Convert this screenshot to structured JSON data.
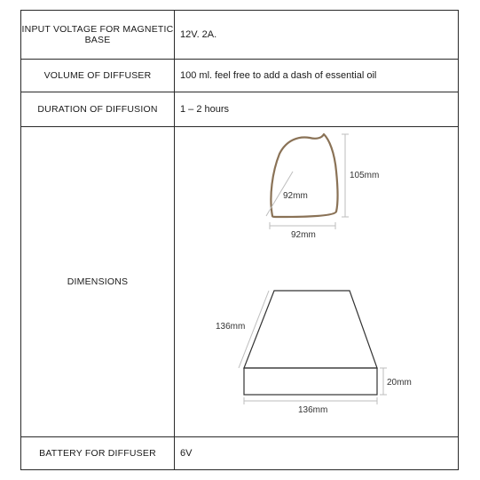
{
  "rows": [
    {
      "label": "INPUT VOLTAGE FOR MAGNETIC BASE",
      "value": "12V. 2A."
    },
    {
      "label": "VOLUME OF DIFFUSER",
      "value": "100 ml. feel free to add a dash of essential oil"
    },
    {
      "label": "DURATION OF DIFFUSION",
      "value": "1 – 2 hours"
    },
    {
      "label": "DIMENSIONS",
      "value": ""
    },
    {
      "label": "BATTERY FOR DIFFUSER",
      "value": "6V"
    }
  ],
  "dimensions": {
    "diffuser_depth": "92mm",
    "diffuser_width": "92mm",
    "diffuser_height": "105mm",
    "base_slant": "136mm",
    "base_width": "136mm",
    "base_height": "20mm"
  },
  "colors": {
    "border": "#2a2a2a",
    "diffuser_outline": "#8a7256"
  }
}
